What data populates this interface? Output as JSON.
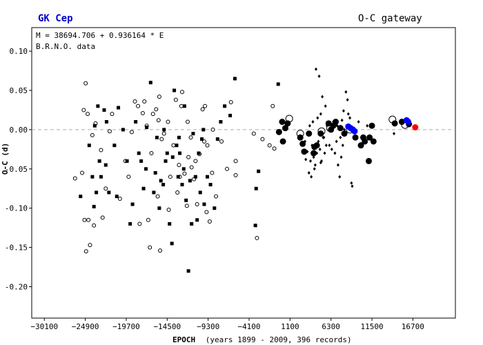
{
  "header": {
    "title": "GK Cep",
    "gateway": "O-C gateway"
  },
  "info": {
    "formula": "M = 38694.706 + 0.936164 * E",
    "source": "B.R.N.O. data"
  },
  "colors": {
    "source_text": "#0000cc",
    "ccd": "#0000ff",
    "latest": "#ff0000",
    "zero_line": "#aaaaaa"
  },
  "chart_data": {
    "type": "scatter",
    "xlabel": "EPOCH",
    "xlabel_note": "(years 1899 - 2009, 396 records)",
    "ylabel": "O-C (d)",
    "xlim": [
      -31700,
      22100
    ],
    "ylim": [
      -0.24,
      0.13
    ],
    "x_ticks": [
      -30100,
      -24900,
      -19700,
      -14500,
      -9300,
      -4100,
      1100,
      6300,
      11500,
      16700
    ],
    "y_ticks": [
      0.1,
      0.05,
      0.0,
      -0.05,
      -0.1,
      -0.15,
      -0.2
    ],
    "zero_line": true,
    "series": [
      {
        "marker": "open-small",
        "points": [
          [
            -26200,
            -0.062
          ],
          [
            -25300,
            -0.055
          ],
          [
            -25100,
            0.025
          ],
          [
            -24850,
            0.059
          ],
          [
            -24600,
            0.02
          ],
          [
            -25000,
            -0.115
          ],
          [
            -24500,
            -0.115
          ],
          [
            -24800,
            -0.155
          ],
          [
            -24300,
            -0.147
          ],
          [
            -23800,
            -0.122
          ],
          [
            -24000,
            -0.007
          ],
          [
            -23600,
            0.008
          ],
          [
            -22700,
            -0.112
          ],
          [
            -22900,
            -0.026
          ],
          [
            -21800,
            -0.002
          ],
          [
            -21500,
            0.02
          ],
          [
            -20500,
            -0.088
          ],
          [
            -19400,
            -0.06
          ],
          [
            -19000,
            -0.003
          ],
          [
            -18600,
            0.036
          ],
          [
            -18200,
            0.03
          ],
          [
            -17400,
            0.036
          ],
          [
            -17600,
            0.021
          ],
          [
            -17100,
            0.005
          ],
          [
            -16900,
            -0.115
          ],
          [
            -16700,
            -0.15
          ],
          [
            -15500,
            0.042
          ],
          [
            -15900,
            0.026
          ],
          [
            -16300,
            0.02
          ],
          [
            -15400,
            -0.154
          ],
          [
            -15700,
            -0.085
          ],
          [
            -14400,
            0.01
          ],
          [
            -14300,
            -0.102
          ],
          [
            -13700,
            -0.02
          ],
          [
            -13000,
            -0.045
          ],
          [
            -12700,
            0.03
          ],
          [
            -12300,
            -0.056
          ],
          [
            -12000,
            -0.097
          ],
          [
            -11500,
            -0.01
          ],
          [
            -11800,
            -0.035
          ],
          [
            -11100,
            -0.063
          ],
          [
            -10400,
            -0.031
          ],
          [
            -10700,
            -0.095
          ],
          [
            -9800,
            -0.015
          ],
          [
            -9500,
            -0.105
          ],
          [
            -9100,
            -0.117
          ],
          [
            -8800,
            -0.055
          ],
          [
            -8700,
            0.0
          ],
          [
            -7600,
            -0.015
          ],
          [
            -6900,
            -0.05
          ],
          [
            -6400,
            0.035
          ],
          [
            -5800,
            -0.058
          ],
          [
            -5800,
            -0.04
          ],
          [
            -11900,
            0.01
          ],
          [
            -13400,
            0.038
          ],
          [
            -14900,
            -0.005
          ],
          [
            -12600,
            0.048
          ],
          [
            -10000,
            0.026
          ],
          [
            -15200,
            -0.012
          ],
          [
            -18000,
            -0.12
          ],
          [
            -9400,
            -0.02
          ],
          [
            -8300,
            -0.085
          ],
          [
            -13200,
            -0.08
          ],
          [
            -11400,
            -0.048
          ],
          [
            -16500,
            -0.03
          ],
          [
            -19800,
            -0.04
          ],
          [
            -22300,
            -0.075
          ],
          [
            -14100,
            -0.06
          ],
          [
            -10900,
            -0.04
          ],
          [
            -15600,
            0.012
          ],
          [
            -3500,
            -0.005
          ],
          [
            -3100,
            -0.138
          ],
          [
            -1100,
            0.03
          ],
          [
            -900,
            -0.024
          ],
          [
            -2400,
            -0.012
          ],
          [
            -1500,
            -0.02
          ],
          [
            -12900,
            -0.06
          ],
          [
            -9700,
            0.03
          ]
        ]
      },
      {
        "marker": "filled-small",
        "points": [
          [
            -25500,
            -0.085
          ],
          [
            -24400,
            -0.02
          ],
          [
            -23700,
            0.005
          ],
          [
            -23300,
            0.03
          ],
          [
            -23100,
            -0.04
          ],
          [
            -22500,
            0.025
          ],
          [
            -22200,
            0.01
          ],
          [
            -21200,
            -0.02
          ],
          [
            -20700,
            0.028
          ],
          [
            -20100,
            0.0
          ],
          [
            -19200,
            -0.12
          ],
          [
            -18500,
            0.01
          ],
          [
            -17800,
            -0.04
          ],
          [
            -17200,
            -0.05
          ],
          [
            -16600,
            0.06
          ],
          [
            -15800,
            -0.01
          ],
          [
            -15500,
            -0.1
          ],
          [
            -15000,
            -0.07
          ],
          [
            -14700,
            -0.04
          ],
          [
            -14200,
            -0.12
          ],
          [
            -13900,
            -0.145
          ],
          [
            -13600,
            0.05
          ],
          [
            -13300,
            -0.02
          ],
          [
            -12900,
            -0.03
          ],
          [
            -12600,
            -0.07
          ],
          [
            -12100,
            -0.09
          ],
          [
            -11800,
            -0.18
          ],
          [
            -11400,
            -0.12
          ],
          [
            -10900,
            -0.06
          ],
          [
            -10500,
            -0.03
          ],
          [
            -10100,
            -0.012
          ],
          [
            -9800,
            -0.095
          ],
          [
            -9400,
            -0.06
          ],
          [
            -9000,
            -0.07
          ],
          [
            -8500,
            -0.1
          ],
          [
            -8100,
            -0.012
          ],
          [
            -7700,
            0.01
          ],
          [
            -7200,
            0.03
          ],
          [
            -6500,
            0.018
          ],
          [
            -5900,
            0.065
          ],
          [
            -16200,
            -0.08
          ],
          [
            -14900,
            0.0
          ],
          [
            -13100,
            -0.06
          ],
          [
            -12300,
            0.03
          ],
          [
            -11200,
            -0.005
          ],
          [
            -20900,
            -0.085
          ],
          [
            -18900,
            -0.095
          ],
          [
            -17500,
            -0.075
          ],
          [
            -24000,
            -0.06
          ],
          [
            -23500,
            -0.08
          ],
          [
            -22900,
            -0.06
          ],
          [
            -21900,
            -0.08
          ],
          [
            -16000,
            -0.055
          ],
          [
            -14500,
            -0.03
          ],
          [
            -15300,
            -0.065
          ],
          [
            -13800,
            -0.035
          ],
          [
            -13000,
            -0.01
          ],
          [
            -12400,
            -0.05
          ],
          [
            -11600,
            -0.065
          ],
          [
            -10700,
            -0.115
          ],
          [
            -9900,
            0.0
          ],
          [
            -10300,
            -0.08
          ],
          [
            -3200,
            -0.075
          ],
          [
            -3300,
            -0.122
          ],
          [
            -2900,
            -0.053
          ],
          [
            -400,
            0.058
          ],
          [
            -23800,
            -0.098
          ],
          [
            -22300,
            -0.045
          ],
          [
            -19600,
            -0.04
          ],
          [
            -18100,
            -0.03
          ],
          [
            -17100,
            0.003
          ]
        ]
      },
      {
        "marker": "diamond-small",
        "points": [
          [
            3100,
            -0.038
          ],
          [
            3300,
            -0.028
          ],
          [
            3500,
            -0.055
          ],
          [
            3700,
            -0.04
          ],
          [
            3900,
            -0.02
          ],
          [
            4100,
            -0.035
          ],
          [
            4300,
            -0.045
          ],
          [
            4500,
            -0.03
          ],
          [
            4700,
            -0.015
          ],
          [
            4900,
            -0.025
          ],
          [
            5100,
            -0.04
          ],
          [
            5300,
            -0.01
          ],
          [
            5500,
            -0.03
          ],
          [
            5700,
            -0.02
          ],
          [
            5900,
            0.0
          ],
          [
            6100,
            -0.02
          ],
          [
            4400,
            0.077
          ],
          [
            4800,
            0.068
          ],
          [
            5200,
            0.042
          ],
          [
            5600,
            0.03
          ],
          [
            4600,
            0.015
          ],
          [
            5000,
            0.02
          ],
          [
            6800,
            -0.03
          ],
          [
            7000,
            -0.015
          ],
          [
            7200,
            -0.045
          ],
          [
            7400,
            -0.06
          ],
          [
            7600,
            -0.035
          ],
          [
            7800,
            -0.02
          ],
          [
            8200,
            0.048
          ],
          [
            8400,
            0.038
          ],
          [
            8500,
            0.02
          ],
          [
            8700,
            0.015
          ],
          [
            8900,
            -0.068
          ],
          [
            9000,
            -0.072
          ],
          [
            7900,
            0.024
          ],
          [
            3000,
            -0.015
          ],
          [
            3600,
            0.005
          ],
          [
            4200,
            -0.05
          ],
          [
            5400,
            -0.01
          ],
          [
            6400,
            -0.025
          ],
          [
            7100,
            0.005
          ],
          [
            7500,
            -0.01
          ],
          [
            6600,
            0.01
          ],
          [
            4000,
            0.01
          ],
          [
            3400,
            -0.005
          ],
          [
            5800,
            0.005
          ],
          [
            8000,
            0.0
          ],
          [
            6200,
            0.002
          ],
          [
            7700,
            0.012
          ],
          [
            9800,
            0.01
          ],
          [
            10900,
            0.005
          ],
          [
            14300,
            -0.005
          ],
          [
            3800,
            -0.06
          ],
          [
            5000,
            -0.042
          ]
        ]
      },
      {
        "marker": "open-large",
        "points": [
          [
            1000,
            0.014
          ],
          [
            2400,
            -0.005
          ],
          [
            5100,
            -0.002
          ],
          [
            6200,
            0.002
          ],
          [
            8700,
            0.0
          ],
          [
            14100,
            0.013
          ],
          [
            15700,
            0.006
          ]
        ]
      },
      {
        "marker": "filled-large",
        "points": [
          [
            -300,
            -0.003
          ],
          [
            100,
            0.01
          ],
          [
            200,
            -0.015
          ],
          [
            500,
            0.002
          ],
          [
            800,
            0.008
          ],
          [
            2400,
            -0.01
          ],
          [
            2700,
            -0.018
          ],
          [
            3500,
            -0.005
          ],
          [
            4100,
            -0.03
          ],
          [
            4500,
            -0.02
          ],
          [
            5000,
            -0.005
          ],
          [
            6300,
            0.0
          ],
          [
            6600,
            0.005
          ],
          [
            6900,
            0.01
          ],
          [
            7500,
            0.002
          ],
          [
            8000,
            -0.005
          ],
          [
            9400,
            -0.01
          ],
          [
            10100,
            -0.02
          ],
          [
            10600,
            -0.015
          ],
          [
            11100,
            -0.04
          ],
          [
            11200,
            -0.01
          ],
          [
            11700,
            -0.015
          ],
          [
            14400,
            0.008
          ],
          [
            15300,
            0.01
          ],
          [
            16200,
            0.007
          ],
          [
            10400,
            -0.01
          ],
          [
            11500,
            0.005
          ],
          [
            4200,
            -0.022
          ],
          [
            2900,
            -0.028
          ],
          [
            6000,
            0.008
          ]
        ]
      },
      {
        "marker": "blue",
        "points": [
          [
            8500,
            0.004
          ],
          [
            8800,
            0.002
          ],
          [
            9100,
            0.0
          ],
          [
            9300,
            -0.002
          ],
          [
            15900,
            0.012
          ],
          [
            16100,
            0.01
          ]
        ]
      },
      {
        "marker": "red",
        "points": [
          [
            17000,
            0.003
          ]
        ]
      }
    ]
  }
}
